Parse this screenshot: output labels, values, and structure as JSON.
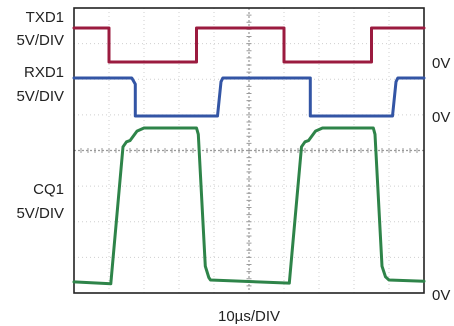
{
  "chart_data": {
    "type": "line",
    "x_scale_label": "10µs/DIV",
    "x_range": [
      0,
      10
    ],
    "x_divisions": 10,
    "y_divisions": 8,
    "grid": true,
    "channels": [
      {
        "name": "TXD1",
        "scale": "5V/DIV",
        "zero_label": "0V",
        "color": "#9b1b3f",
        "high": 5,
        "low": 0,
        "points": [
          [
            0,
            5
          ],
          [
            1.0,
            5
          ],
          [
            1.0,
            0
          ],
          [
            3.5,
            0
          ],
          [
            3.5,
            5
          ],
          [
            6.0,
            5
          ],
          [
            6.0,
            0
          ],
          [
            8.5,
            0
          ],
          [
            8.5,
            5
          ],
          [
            10,
            5
          ]
        ]
      },
      {
        "name": "RXD1",
        "scale": "5V/DIV",
        "zero_label": "0V",
        "color": "#3355a5",
        "high": 5,
        "low": 0,
        "points": [
          [
            0,
            5
          ],
          [
            1.65,
            5
          ],
          [
            1.75,
            4.2
          ],
          [
            1.75,
            0
          ],
          [
            4.1,
            0
          ],
          [
            4.2,
            4.5
          ],
          [
            4.25,
            5
          ],
          [
            6.75,
            5
          ],
          [
            6.75,
            0
          ],
          [
            9.1,
            0
          ],
          [
            9.2,
            4.5
          ],
          [
            9.25,
            5
          ],
          [
            10,
            5
          ]
        ]
      },
      {
        "name": "CQ1",
        "scale": "5V/DIV",
        "zero_label": "0V",
        "color": "#2e8449",
        "high": 25,
        "low": 0,
        "points": [
          [
            0,
            0.5
          ],
          [
            1.05,
            0.2
          ],
          [
            1.4,
            22
          ],
          [
            1.5,
            22.8
          ],
          [
            1.6,
            23
          ],
          [
            1.8,
            24.5
          ],
          [
            2.0,
            25
          ],
          [
            3.5,
            25
          ],
          [
            3.55,
            24
          ],
          [
            3.75,
            3
          ],
          [
            3.85,
            1.2
          ],
          [
            3.9,
            0.8
          ],
          [
            6.15,
            0.3
          ],
          [
            6.5,
            22
          ],
          [
            6.6,
            22.8
          ],
          [
            6.7,
            23
          ],
          [
            6.9,
            24.5
          ],
          [
            7.1,
            25
          ],
          [
            8.55,
            25
          ],
          [
            8.6,
            24
          ],
          [
            8.8,
            3
          ],
          [
            8.9,
            1.3
          ],
          [
            9.0,
            0.8
          ],
          [
            10,
            0.6
          ]
        ]
      }
    ]
  }
}
